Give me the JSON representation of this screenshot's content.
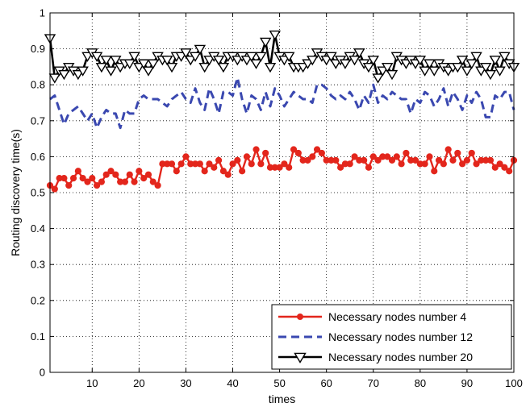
{
  "chart_data": {
    "type": "line",
    "title": "",
    "xlabel": "times",
    "ylabel": "Routing discovery time(s)",
    "xlim": [
      1,
      100
    ],
    "ylim": [
      0,
      1
    ],
    "xticks": [
      10,
      20,
      30,
      40,
      50,
      60,
      70,
      80,
      90,
      100
    ],
    "yticks": [
      0,
      0.1,
      0.2,
      0.3,
      0.4,
      0.5,
      0.6,
      0.7,
      0.8,
      0.9,
      1
    ],
    "ytick_labels": [
      "0",
      "0.1",
      "0.2",
      "0.3",
      "0.4",
      "0.5",
      "0.6",
      "0.7",
      "0.8",
      "0.9",
      "1"
    ],
    "grid": true,
    "legend_position": "bottom-right",
    "x": [
      1,
      2,
      3,
      4,
      5,
      6,
      7,
      8,
      9,
      10,
      11,
      12,
      13,
      14,
      15,
      16,
      17,
      18,
      19,
      20,
      21,
      22,
      23,
      24,
      25,
      26,
      27,
      28,
      29,
      30,
      31,
      32,
      33,
      34,
      35,
      36,
      37,
      38,
      39,
      40,
      41,
      42,
      43,
      44,
      45,
      46,
      47,
      48,
      49,
      50,
      51,
      52,
      53,
      54,
      55,
      56,
      57,
      58,
      59,
      60,
      61,
      62,
      63,
      64,
      65,
      66,
      67,
      68,
      69,
      70,
      71,
      72,
      73,
      74,
      75,
      76,
      77,
      78,
      79,
      80,
      81,
      82,
      83,
      84,
      85,
      86,
      87,
      88,
      89,
      90,
      91,
      92,
      93,
      94,
      95,
      96,
      97,
      98,
      99,
      100
    ],
    "series": [
      {
        "name": "Necessary nodes number 4",
        "color": "#e3261c",
        "style": "solid-circle-markers",
        "values": [
          0.52,
          0.51,
          0.54,
          0.54,
          0.52,
          0.54,
          0.56,
          0.54,
          0.53,
          0.54,
          0.52,
          0.53,
          0.55,
          0.56,
          0.55,
          0.53,
          0.53,
          0.55,
          0.53,
          0.56,
          0.54,
          0.55,
          0.53,
          0.52,
          0.58,
          0.58,
          0.58,
          0.56,
          0.58,
          0.6,
          0.58,
          0.58,
          0.58,
          0.56,
          0.58,
          0.57,
          0.59,
          0.56,
          0.55,
          0.58,
          0.59,
          0.56,
          0.6,
          0.58,
          0.62,
          0.58,
          0.61,
          0.57,
          0.57,
          0.57,
          0.58,
          0.57,
          0.62,
          0.61,
          0.59,
          0.59,
          0.6,
          0.62,
          0.61,
          0.59,
          0.59,
          0.59,
          0.57,
          0.58,
          0.58,
          0.6,
          0.59,
          0.59,
          0.57,
          0.6,
          0.59,
          0.6,
          0.6,
          0.59,
          0.6,
          0.58,
          0.61,
          0.59,
          0.59,
          0.58,
          0.58,
          0.6,
          0.56,
          0.59,
          0.58,
          0.62,
          0.59,
          0.61,
          0.58,
          0.59,
          0.61,
          0.58,
          0.59,
          0.59,
          0.59,
          0.57,
          0.58,
          0.57,
          0.56,
          0.59
        ]
      },
      {
        "name": "Necessary nodes number 12",
        "color": "#3a48b0",
        "style": "dashed",
        "values": [
          0.76,
          0.77,
          0.73,
          0.69,
          0.72,
          0.73,
          0.74,
          0.72,
          0.7,
          0.72,
          0.68,
          0.71,
          0.73,
          0.72,
          0.72,
          0.68,
          0.73,
          0.72,
          0.72,
          0.76,
          0.77,
          0.76,
          0.76,
          0.76,
          0.75,
          0.74,
          0.76,
          0.77,
          0.78,
          0.76,
          0.75,
          0.79,
          0.75,
          0.73,
          0.79,
          0.76,
          0.72,
          0.78,
          0.78,
          0.77,
          0.82,
          0.76,
          0.72,
          0.77,
          0.76,
          0.73,
          0.78,
          0.74,
          0.79,
          0.77,
          0.74,
          0.76,
          0.78,
          0.77,
          0.76,
          0.76,
          0.75,
          0.8,
          0.8,
          0.79,
          0.77,
          0.76,
          0.77,
          0.76,
          0.78,
          0.76,
          0.73,
          0.77,
          0.75,
          0.8,
          0.75,
          0.77,
          0.76,
          0.78,
          0.77,
          0.76,
          0.76,
          0.72,
          0.76,
          0.75,
          0.78,
          0.77,
          0.74,
          0.76,
          0.79,
          0.74,
          0.78,
          0.76,
          0.73,
          0.77,
          0.75,
          0.78,
          0.76,
          0.71,
          0.71,
          0.77,
          0.76,
          0.78,
          0.78,
          0.73
        ]
      },
      {
        "name": "Necessary nodes number 20",
        "color": "#000000",
        "style": "solid-triangle-down-markers",
        "values": [
          0.93,
          0.82,
          0.84,
          0.83,
          0.85,
          0.84,
          0.83,
          0.84,
          0.88,
          0.89,
          0.88,
          0.85,
          0.87,
          0.84,
          0.87,
          0.85,
          0.86,
          0.86,
          0.88,
          0.85,
          0.86,
          0.84,
          0.86,
          0.88,
          0.87,
          0.87,
          0.85,
          0.88,
          0.88,
          0.89,
          0.87,
          0.88,
          0.9,
          0.85,
          0.87,
          0.88,
          0.87,
          0.85,
          0.88,
          0.88,
          0.87,
          0.88,
          0.87,
          0.88,
          0.86,
          0.88,
          0.92,
          0.85,
          0.94,
          0.88,
          0.87,
          0.88,
          0.85,
          0.85,
          0.85,
          0.86,
          0.87,
          0.89,
          0.88,
          0.87,
          0.88,
          0.86,
          0.87,
          0.86,
          0.88,
          0.87,
          0.89,
          0.86,
          0.85,
          0.87,
          0.82,
          0.84,
          0.85,
          0.83,
          0.88,
          0.87,
          0.86,
          0.87,
          0.86,
          0.87,
          0.84,
          0.86,
          0.84,
          0.86,
          0.85,
          0.84,
          0.85,
          0.85,
          0.87,
          0.84,
          0.86,
          0.88,
          0.84,
          0.85,
          0.83,
          0.87,
          0.84,
          0.88,
          0.86,
          0.85
        ]
      }
    ]
  }
}
